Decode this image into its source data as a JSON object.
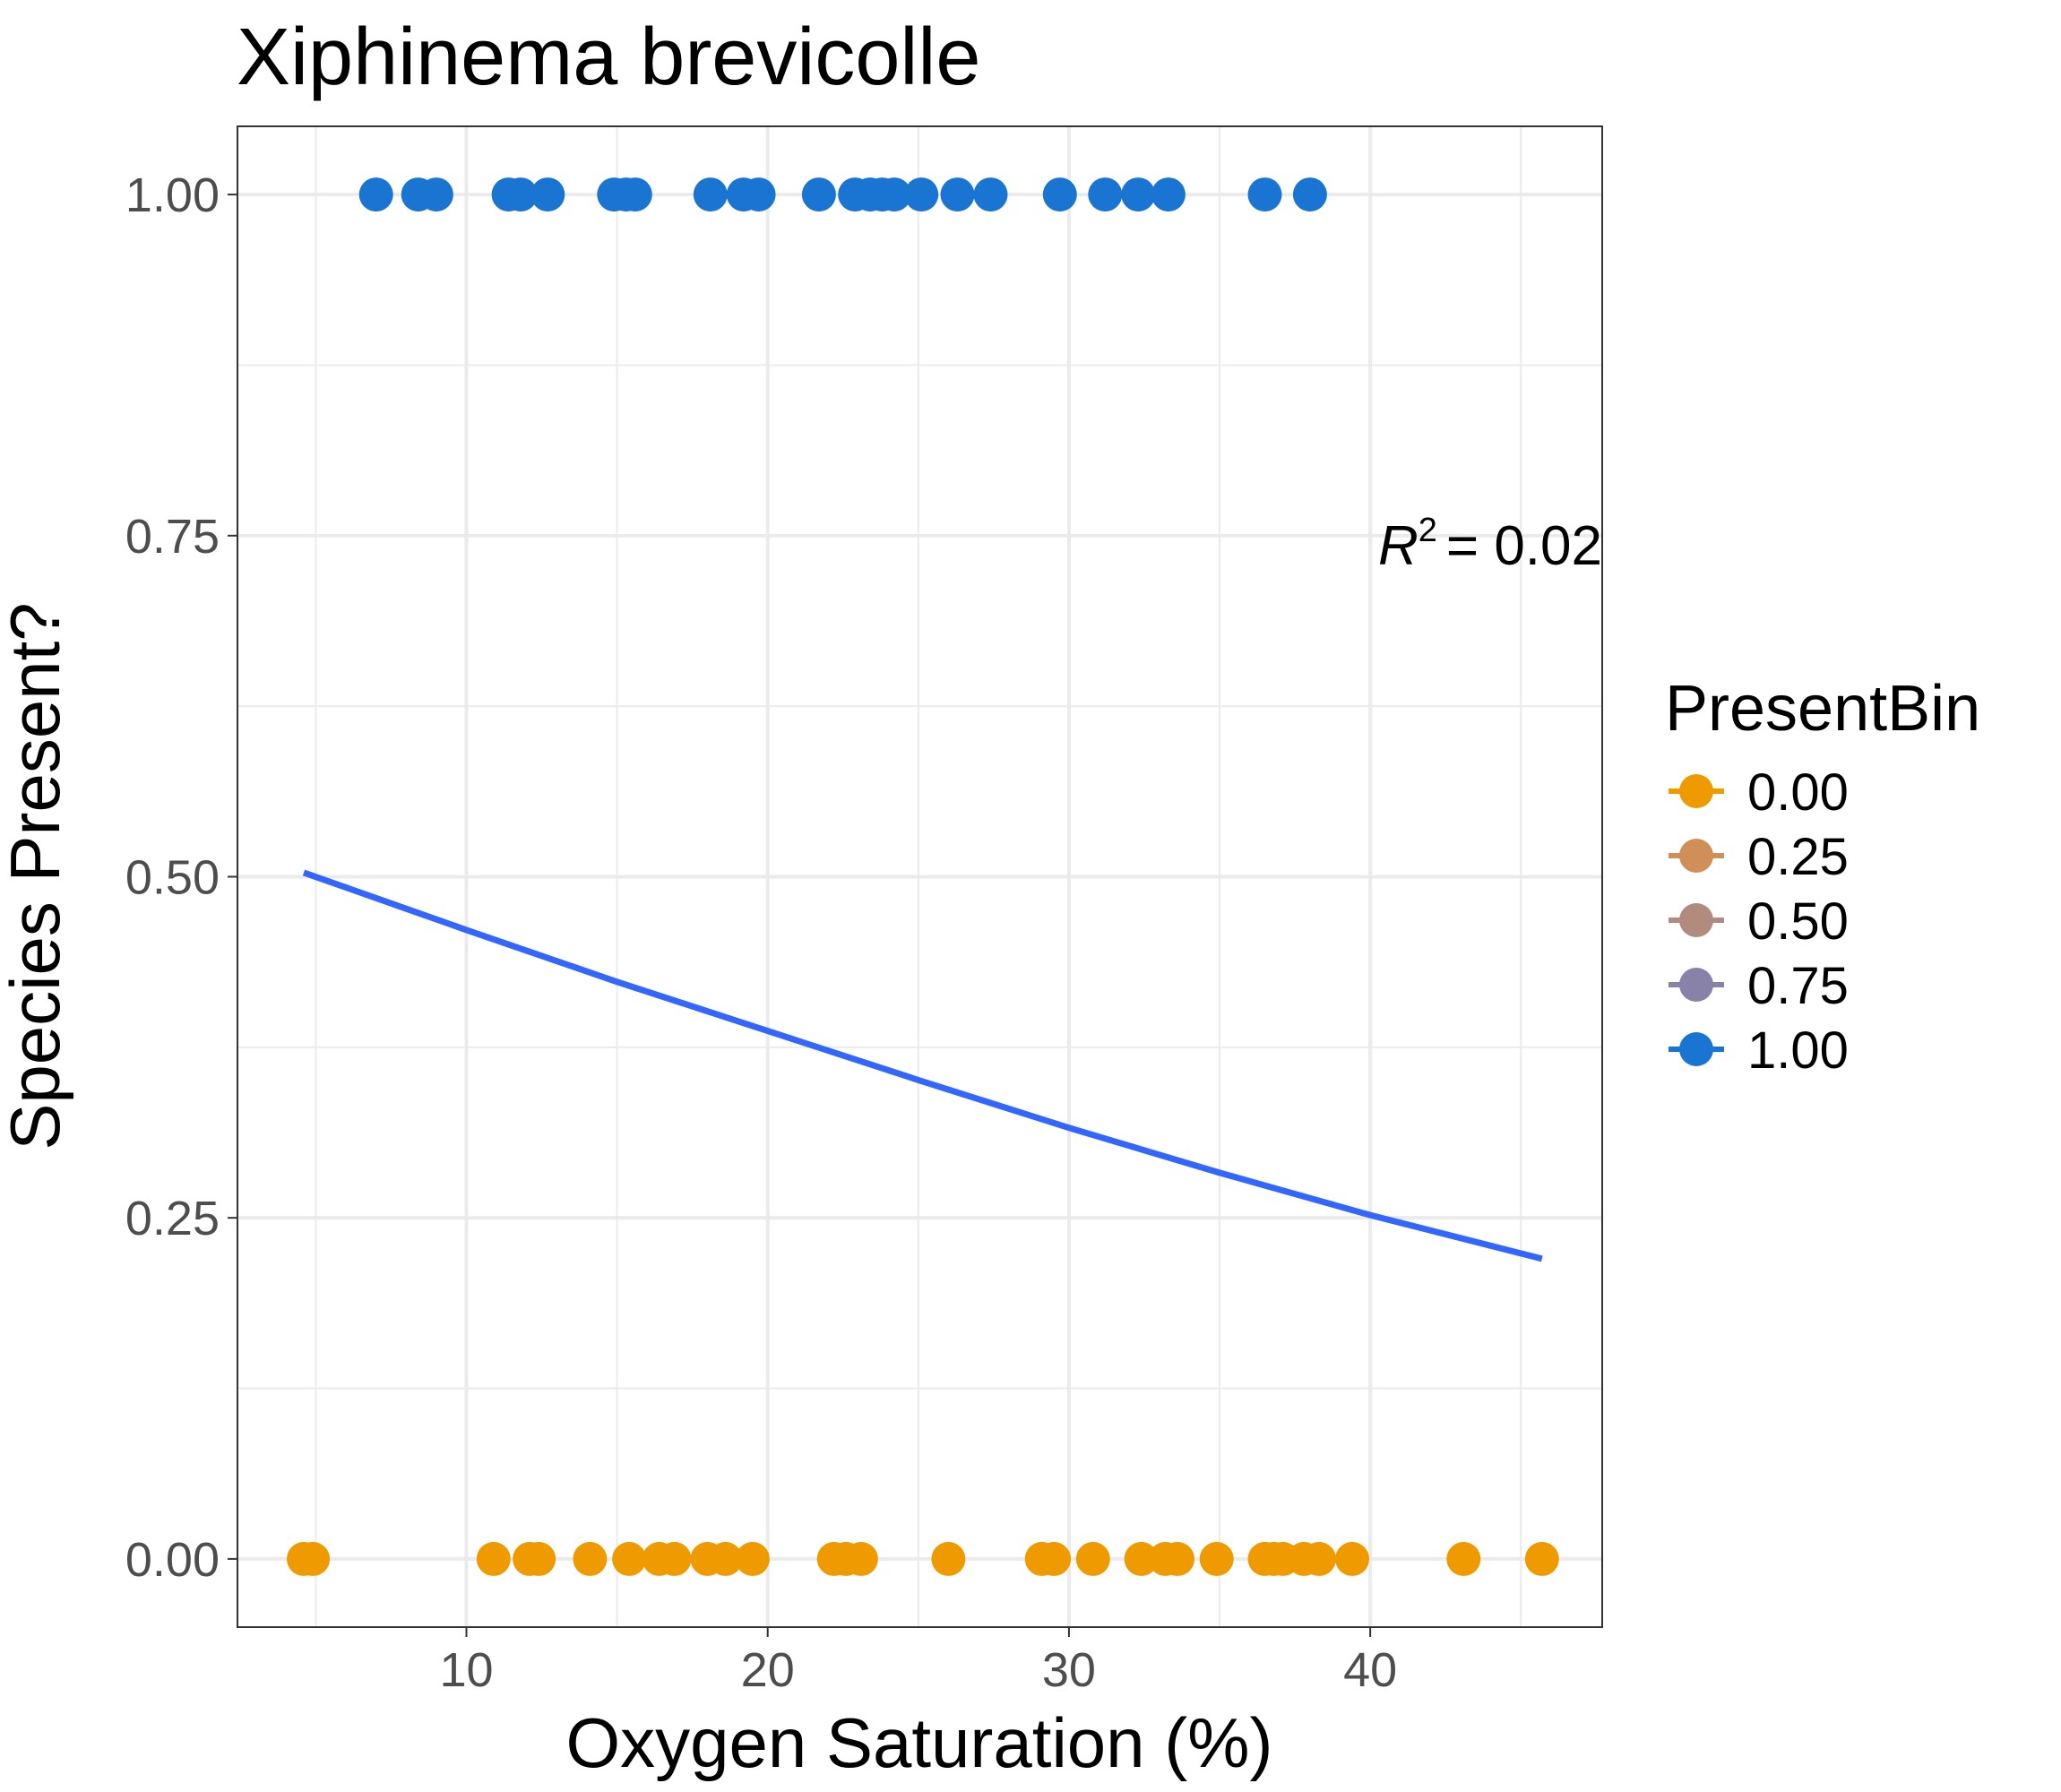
{
  "chart_data": {
    "type": "scatter",
    "title": "Xiphinema brevicolle",
    "xlabel": "Oxygen Saturation (%)",
    "ylabel": "Species Present?",
    "xlim": [
      2.4,
      47.7
    ],
    "ylim": [
      -0.05,
      1.05
    ],
    "x_ticks": [
      10,
      20,
      30,
      40
    ],
    "y_ticks": [
      0.0,
      0.25,
      0.5,
      0.75,
      1.0
    ],
    "y_tick_labels": [
      "0.00",
      "0.25",
      "0.50",
      "0.75",
      "1.00"
    ],
    "x_tick_labels": [
      "10",
      "20",
      "30",
      "40"
    ],
    "grid": true,
    "legend": {
      "title": "PresentBin",
      "position": "right",
      "entries": [
        {
          "label": "0.00",
          "color": "#ef9b00"
        },
        {
          "label": "0.25",
          "color": "#d08f58"
        },
        {
          "label": "0.50",
          "color": "#b28b7f"
        },
        {
          "label": "0.75",
          "color": "#8882a8"
        },
        {
          "label": "1.00",
          "color": "#1a74d2"
        }
      ]
    },
    "series": [
      {
        "color": "#ef9b00",
        "y": 0,
        "x": [
          4.6,
          4.9,
          10.9,
          12.1,
          12.4,
          14.1,
          15.4,
          16.4,
          16.9,
          18.0,
          18.6,
          19.5,
          22.2,
          22.6,
          23.1,
          26.0,
          29.1,
          29.5,
          30.8,
          32.4,
          33.2,
          33.6,
          34.9,
          36.5,
          36.8,
          37.1,
          37.8,
          38.3,
          39.4,
          43.1,
          45.7
        ]
      },
      {
        "color": "#1a74d2",
        "y": 1,
        "x": [
          7.0,
          8.4,
          9.0,
          11.4,
          11.8,
          12.7,
          14.9,
          15.3,
          15.6,
          18.1,
          19.2,
          19.7,
          21.7,
          22.9,
          23.4,
          23.8,
          24.2,
          25.1,
          26.3,
          27.4,
          29.7,
          31.2,
          32.3,
          33.3,
          36.5,
          38.0
        ]
      }
    ],
    "fit_line": {
      "color": "#3366ff",
      "x": [
        4.6,
        10,
        15,
        20,
        25,
        30,
        35,
        40,
        45.7
      ],
      "y": [
        0.503,
        0.461,
        0.423,
        0.387,
        0.351,
        0.316,
        0.283,
        0.252,
        0.22
      ]
    },
    "annotation": {
      "lhs": "R",
      "superscript": "2",
      "rhs": "= 0.02"
    }
  }
}
